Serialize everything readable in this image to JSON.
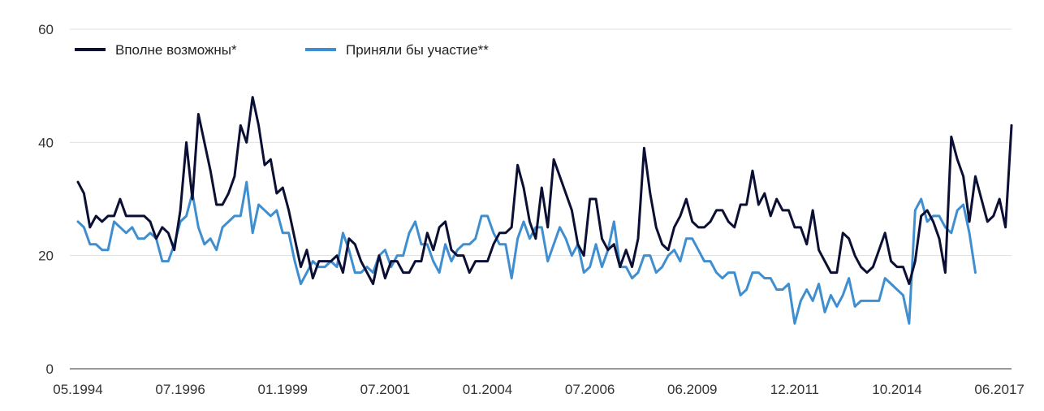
{
  "chart_data": {
    "type": "line",
    "title": "",
    "xlabel": "",
    "ylabel": "",
    "ylim": [
      0,
      60
    ],
    "yticks": [
      0,
      20,
      40,
      60
    ],
    "grid": true,
    "legend_position": "top-left",
    "x_tick_labels": [
      "05.1994",
      "07.1996",
      "01.1999",
      "07.2001",
      "01.2004",
      "07.2006",
      "06.2009",
      "12.2011",
      "10.2014",
      "06.2017"
    ],
    "x_tick_indices": [
      0,
      17,
      34,
      51,
      68,
      85,
      102,
      119,
      136,
      153
    ],
    "series": [
      {
        "name": "Вполне возможны*",
        "color": "#0b0f33",
        "values": [
          33,
          31,
          25,
          27,
          26,
          27,
          27,
          30,
          27,
          27,
          27,
          27,
          26,
          23,
          25,
          24,
          21,
          28,
          40,
          30,
          45,
          40,
          35,
          29,
          29,
          31,
          34,
          43,
          40,
          48,
          43,
          36,
          37,
          31,
          32,
          28,
          23,
          18,
          21,
          16,
          19,
          19,
          19,
          20,
          17,
          23,
          22,
          19,
          17,
          15,
          20,
          16,
          19,
          19,
          17,
          17,
          19,
          19,
          24,
          21,
          25,
          26,
          21,
          20,
          20,
          17,
          19,
          19,
          19,
          22,
          24,
          24,
          25,
          36,
          32,
          26,
          23,
          32,
          25,
          37,
          34,
          31,
          28,
          22,
          20,
          30,
          30,
          23,
          21,
          22,
          18,
          21,
          18,
          23,
          39,
          31,
          25,
          22,
          21,
          25,
          27,
          30,
          26,
          25,
          25,
          26,
          28,
          28,
          26,
          25,
          29,
          29,
          35,
          29,
          31,
          27,
          30,
          28,
          28,
          25,
          25,
          22,
          28,
          21,
          19,
          17,
          17,
          24,
          23,
          20,
          18,
          17,
          18,
          21,
          24,
          19,
          18,
          18,
          15,
          19,
          27,
          28,
          26,
          23,
          17,
          41,
          37,
          34,
          26,
          34,
          30,
          26,
          27,
          30,
          25,
          43
        ]
      },
      {
        "name": "Приняли бы участие**",
        "color": "#3f8fd0",
        "values": [
          26,
          25,
          22,
          22,
          21,
          21,
          26,
          25,
          24,
          25,
          23,
          23,
          24,
          23,
          19,
          19,
          22,
          26,
          27,
          31,
          25,
          22,
          23,
          21,
          25,
          26,
          27,
          27,
          33,
          24,
          29,
          28,
          27,
          28,
          24,
          24,
          19,
          15,
          17,
          19,
          18,
          18,
          19,
          18,
          24,
          21,
          17,
          17,
          18,
          17,
          20,
          21,
          18,
          20,
          20,
          24,
          26,
          22,
          22,
          19,
          17,
          22,
          19,
          21,
          22,
          22,
          23,
          27,
          27,
          24,
          22,
          22,
          16,
          23,
          26,
          23,
          25,
          25,
          19,
          22,
          25,
          23,
          20,
          22,
          17,
          18,
          22,
          18,
          21,
          26,
          18,
          18,
          16,
          17,
          20,
          20,
          17,
          18,
          20,
          21,
          19,
          23,
          23,
          21,
          19,
          19,
          17,
          16,
          17,
          17,
          13,
          14,
          17,
          17,
          16,
          16,
          14,
          14,
          15,
          8,
          12,
          14,
          12,
          15,
          10,
          13,
          11,
          13,
          16,
          11,
          12,
          12,
          12,
          12,
          16,
          15,
          14,
          13,
          8,
          28,
          30,
          26,
          27,
          27,
          25,
          24,
          28,
          29,
          24,
          17
        ]
      }
    ]
  }
}
